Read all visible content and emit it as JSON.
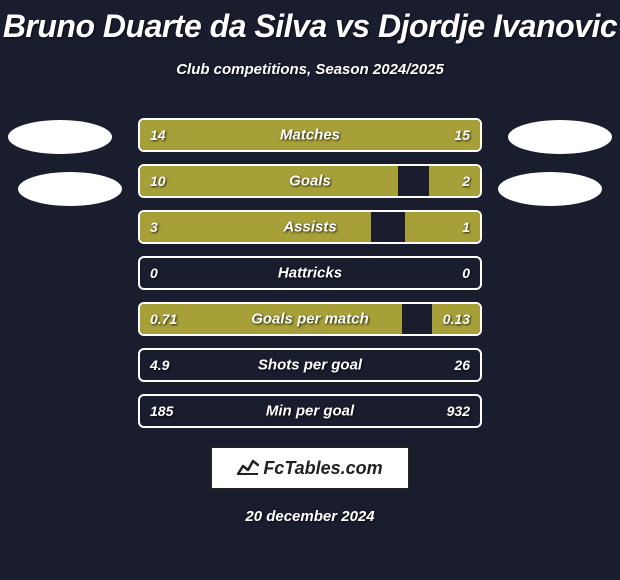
{
  "title": "Bruno Duarte da Silva vs Djordje Ivanovic",
  "subtitle": "Club competitions, Season 2024/2025",
  "date": "20 december 2024",
  "logo_text": "FcTables.com",
  "colors": {
    "background": "#1a1d2e",
    "bar_fill": "#a7a038",
    "bar_border": "#ffffff",
    "text": "#ffffff",
    "logo_bg": "#ffffff",
    "logo_text": "#222222"
  },
  "stats": [
    {
      "label": "Matches",
      "left_val": "14",
      "right_val": "15",
      "left_pct": 48,
      "right_pct": 52
    },
    {
      "label": "Goals",
      "left_val": "10",
      "right_val": "2",
      "left_pct": 76,
      "right_pct": 15
    },
    {
      "label": "Assists",
      "left_val": "3",
      "right_val": "1",
      "left_pct": 68,
      "right_pct": 22
    },
    {
      "label": "Hattricks",
      "left_val": "0",
      "right_val": "0",
      "left_pct": 0,
      "right_pct": 0
    },
    {
      "label": "Goals per match",
      "left_val": "0.71",
      "right_val": "0.13",
      "left_pct": 77,
      "right_pct": 14
    },
    {
      "label": "Shots per goal",
      "left_val": "4.9",
      "right_val": "26",
      "left_pct": 0,
      "right_pct": 0
    },
    {
      "label": "Min per goal",
      "left_val": "185",
      "right_val": "932",
      "left_pct": 0,
      "right_pct": 0
    }
  ]
}
